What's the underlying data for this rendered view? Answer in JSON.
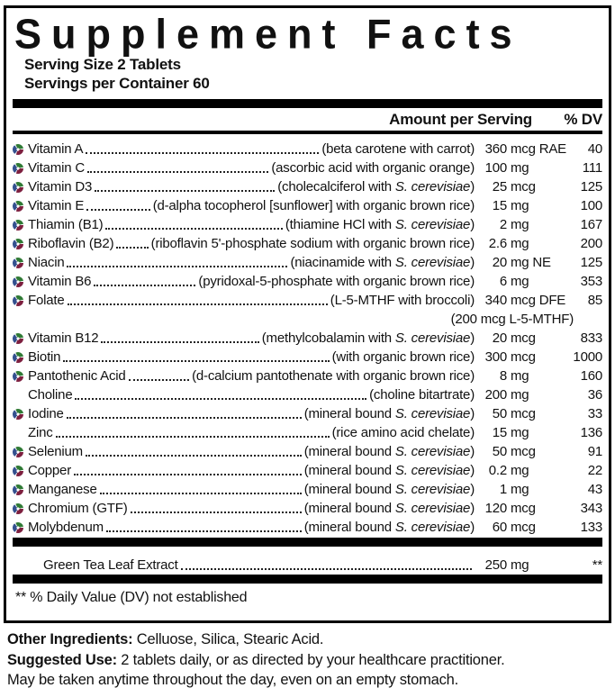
{
  "title": "Supplement Facts",
  "serving": {
    "size": "Serving Size 2 Tablets",
    "per_container": "Servings per Container 60"
  },
  "table": {
    "col_amount": "Amount per Serving",
    "col_dv": "% DV",
    "rows": [
      {
        "icon": true,
        "name": "Vitamin A",
        "desc_pre": "(beta carotene with carrot)",
        "desc_italic": "",
        "desc_post": "",
        "amt_val": "360",
        "amt_unit": "mcg RAE",
        "dv": "40"
      },
      {
        "icon": true,
        "name": "Vitamin C",
        "desc_pre": "(ascorbic acid with organic orange)",
        "desc_italic": "",
        "desc_post": "",
        "amt_val": "100",
        "amt_unit": "mg",
        "dv": "111"
      },
      {
        "icon": true,
        "name": "Vitamin D3",
        "desc_pre": "(cholecalciferol with ",
        "desc_italic": "S. cerevisiae",
        "desc_post": ")",
        "amt_val": "25",
        "amt_unit": "mcg",
        "dv": "125"
      },
      {
        "icon": true,
        "name": "Vitamin E",
        "desc_pre": "(d-alpha tocopherol [sunflower] with organic brown rice)",
        "desc_italic": "",
        "desc_post": "",
        "amt_val": "15",
        "amt_unit": "mg",
        "dv": "100"
      },
      {
        "icon": true,
        "name": "Thiamin (B1)",
        "desc_pre": "(thiamine HCl with ",
        "desc_italic": "S. cerevisiae",
        "desc_post": ")",
        "amt_val": "2",
        "amt_unit": "mg",
        "dv": "167"
      },
      {
        "icon": true,
        "name": "Riboflavin (B2)",
        "desc_pre": "(riboflavin 5'-phosphate sodium with organic brown rice)",
        "desc_italic": "",
        "desc_post": "",
        "amt_val": "2.6",
        "amt_unit": "mg",
        "dv": "200"
      },
      {
        "icon": true,
        "name": "Niacin",
        "desc_pre": "(niacinamide with ",
        "desc_italic": "S. cerevisiae",
        "desc_post": ")",
        "amt_val": "20",
        "amt_unit": "mg NE",
        "dv": "125"
      },
      {
        "icon": true,
        "name": "Vitamin B6",
        "desc_pre": "(pyridoxal-5-phosphate with organic brown rice)",
        "desc_italic": "",
        "desc_post": "",
        "amt_val": "6",
        "amt_unit": "mg",
        "dv": "353"
      },
      {
        "icon": true,
        "name": "Folate",
        "desc_pre": "(L-5-MTHF with broccoli)",
        "desc_italic": "",
        "desc_post": "",
        "amt_val": "340",
        "amt_unit": "mcg DFE",
        "dv": "85"
      },
      {
        "note": "(200 mcg L-5-MTHF)"
      },
      {
        "icon": true,
        "name": "Vitamin B12",
        "desc_pre": "(methylcobalamin with ",
        "desc_italic": "S. cerevisiae",
        "desc_post": ")",
        "amt_val": "20",
        "amt_unit": "mcg",
        "dv": "833"
      },
      {
        "icon": true,
        "name": "Biotin",
        "desc_pre": "(with organic brown rice)",
        "desc_italic": "",
        "desc_post": "",
        "amt_val": "300",
        "amt_unit": "mcg",
        "dv": "1000"
      },
      {
        "icon": true,
        "name": "Pantothenic Acid",
        "desc_pre": "(d-calcium pantothenate with organic brown rice)",
        "desc_italic": "",
        "desc_post": "",
        "amt_val": "8",
        "amt_unit": "mg",
        "dv": "160"
      },
      {
        "icon": false,
        "name": "Choline",
        "desc_pre": "(choline bitartrate)",
        "desc_italic": "",
        "desc_post": "",
        "amt_val": "200",
        "amt_unit": "mg",
        "dv": "36"
      },
      {
        "icon": true,
        "name": "Iodine",
        "desc_pre": "(mineral bound ",
        "desc_italic": "S. cerevisiae",
        "desc_post": ")",
        "amt_val": "50",
        "amt_unit": "mcg",
        "dv": "33"
      },
      {
        "icon": false,
        "name": "Zinc",
        "desc_pre": "(rice amino acid chelate)",
        "desc_italic": "",
        "desc_post": "",
        "amt_val": "15",
        "amt_unit": "mg",
        "dv": "136"
      },
      {
        "icon": true,
        "name": "Selenium",
        "desc_pre": "(mineral bound ",
        "desc_italic": "S. cerevisiae",
        "desc_post": ")",
        "amt_val": "50",
        "amt_unit": "mcg",
        "dv": "91"
      },
      {
        "icon": true,
        "name": "Copper",
        "desc_pre": "(mineral bound ",
        "desc_italic": "S. cerevisiae",
        "desc_post": ")",
        "amt_val": "0.2",
        "amt_unit": "mg",
        "dv": "22"
      },
      {
        "icon": true,
        "name": "Manganese",
        "desc_pre": "(mineral bound ",
        "desc_italic": "S. cerevisiae",
        "desc_post": ")",
        "amt_val": "1",
        "amt_unit": "mg",
        "dv": "43"
      },
      {
        "icon": true,
        "name": "Chromium (GTF)",
        "desc_pre": "(mineral bound ",
        "desc_italic": "S. cerevisiae",
        "desc_post": ")",
        "amt_val": "120",
        "amt_unit": "mcg",
        "dv": "343"
      },
      {
        "icon": true,
        "name": "Molybdenum",
        "desc_pre": "(mineral bound ",
        "desc_italic": "S. cerevisiae",
        "desc_post": ")",
        "amt_val": "60",
        "amt_unit": "mcg",
        "dv": "133"
      }
    ],
    "extract_row": {
      "icon": false,
      "name": "Green Tea Leaf Extract",
      "desc_pre": "",
      "desc_italic": "",
      "desc_post": "",
      "amt_val": "250",
      "amt_unit": "mg",
      "dv": "**"
    }
  },
  "footnote": "** % Daily Value (DV) not established",
  "footer": {
    "other_label": "Other Ingredients:",
    "other_text": " Celluose, Silica, Stearic Acid.",
    "use_label": "Suggested Use:",
    "use_text": " 2 tablets daily, or as directed by your healthcare practitioner.",
    "note": "May be taken anytime throughout the day, even on an empty stomach."
  },
  "colors": {
    "icon_blue": "#33508e",
    "icon_green": "#2f7a35",
    "icon_maroon": "#7d1f3f",
    "rule_black": "#000000"
  }
}
